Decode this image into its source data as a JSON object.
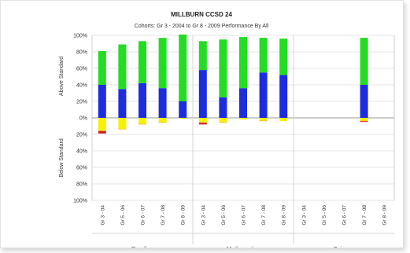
{
  "chart_data": {
    "type": "bar",
    "stacked": true,
    "title": "MILLBURN CCSD 24",
    "subtitle": "Cohorts: Gr 3 - 2004 to Gr 8 - 2009 Performance By All",
    "y_ticks": [
      "100%",
      "80%",
      "60%",
      "40%",
      "20%",
      "0%",
      "20%",
      "40%",
      "60%",
      "80%",
      "100%"
    ],
    "ylim": [
      -100,
      100
    ],
    "ylabel_above": "Above Standard",
    "ylabel_below": "Below Standard",
    "groups": [
      {
        "name": "Reading",
        "categories": [
          "Gr 3 - 04",
          "Gr 5 - 06",
          "Gr 6 - 07",
          "Gr 7 - 08",
          "Gr 8 - 09"
        ]
      },
      {
        "name": "Mathematics",
        "categories": [
          "Gr 3 - 04",
          "Gr 5 - 06",
          "Gr 6 - 07",
          "Gr 7 - 08",
          "Gr 8 - 09"
        ]
      },
      {
        "name": "Science",
        "categories": [
          "Gr 3 - 04",
          "Gr 5 - 06",
          "Gr 6 - 07",
          "Gr 7 - 08",
          "Gr 8 - 09"
        ]
      }
    ],
    "series": [
      {
        "color": "#1c2de0",
        "values": [
          40,
          35,
          42,
          36,
          20,
          58,
          25,
          36,
          55,
          52,
          null,
          null,
          null,
          40,
          null
        ]
      },
      {
        "color": "#22dd22",
        "values": [
          41,
          54,
          51,
          61,
          81,
          35,
          70,
          62,
          42,
          44,
          null,
          null,
          null,
          57,
          null
        ]
      },
      {
        "color": "#f7f200",
        "values": [
          -15,
          -13,
          -7,
          -5,
          -1,
          -5,
          -5,
          -2,
          -3,
          -4,
          null,
          null,
          null,
          -3,
          null
        ]
      },
      {
        "color": "#f5c400",
        "values": [
          -1,
          -1,
          -1,
          -1,
          0,
          -1,
          -1,
          0,
          -1,
          0,
          null,
          null,
          null,
          -1,
          null
        ]
      },
      {
        "color": "#cc2222",
        "values": [
          -3,
          0,
          0,
          0,
          0,
          -2,
          0,
          0,
          0,
          0,
          null,
          null,
          null,
          -1,
          null
        ]
      }
    ]
  }
}
